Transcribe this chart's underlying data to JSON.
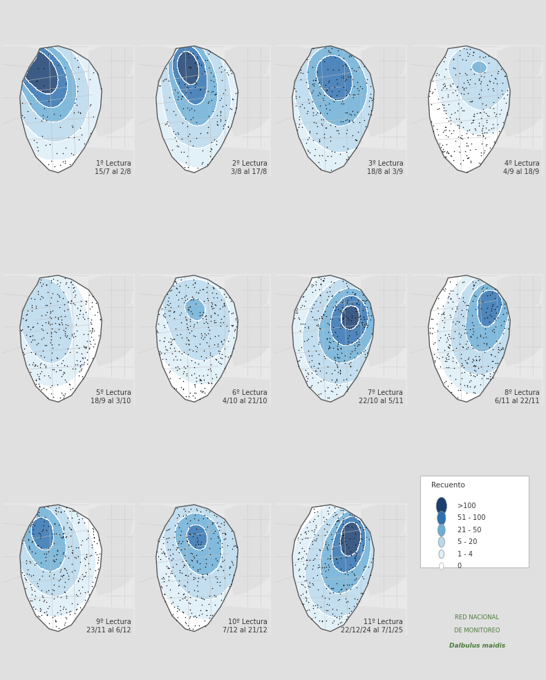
{
  "panels": [
    {
      "title": "1º Lectura",
      "subtitle": "15/7 al 2/8",
      "row": 0,
      "col": 0
    },
    {
      "title": "2º Lectura",
      "subtitle": "3/8 al 17/8",
      "row": 0,
      "col": 1
    },
    {
      "title": "3º Lectura",
      "subtitle": "18/8 al 3/9",
      "row": 0,
      "col": 2
    },
    {
      "title": "4º Lectura",
      "subtitle": "4/9 al 18/9",
      "row": 0,
      "col": 3
    },
    {
      "title": "5º Lectura",
      "subtitle": "18/9 al 3/10",
      "row": 1,
      "col": 0
    },
    {
      "title": "6º Lectura",
      "subtitle": "4/10 al 21/10",
      "row": 1,
      "col": 1
    },
    {
      "title": "7º Lectura",
      "subtitle": "22/10 al 5/11",
      "row": 1,
      "col": 2
    },
    {
      "title": "8º Lectura",
      "subtitle": "6/11 al 22/11",
      "row": 1,
      "col": 3
    },
    {
      "title": "9º Lectura",
      "subtitle": "23/11 al 6/12",
      "row": 2,
      "col": 0
    },
    {
      "title": "10º Lectura",
      "subtitle": "7/12 al 21/12",
      "row": 2,
      "col": 1
    },
    {
      "title": "11º Lectura",
      "subtitle": "22/12/24 al 7/1/25",
      "row": 2,
      "col": 2
    }
  ],
  "legend_title": "Recuento",
  "legend_items": [
    {
      "label": ">100",
      "color": "#1a3f6f"
    },
    {
      "label": "51 - 100",
      "color": "#2f71b0"
    },
    {
      "label": "21 - 50",
      "color": "#6baed6"
    },
    {
      "label": "5 - 20",
      "color": "#b8d9ed"
    },
    {
      "label": "1 - 4",
      "color": "#ddeef7"
    },
    {
      "label": "0",
      "color": "#ffffff"
    }
  ],
  "bg_color": "#e0e0e0",
  "panel_bg": "#e8e8e8",
  "title_fontsize": 7.5,
  "label_color": "#333333"
}
